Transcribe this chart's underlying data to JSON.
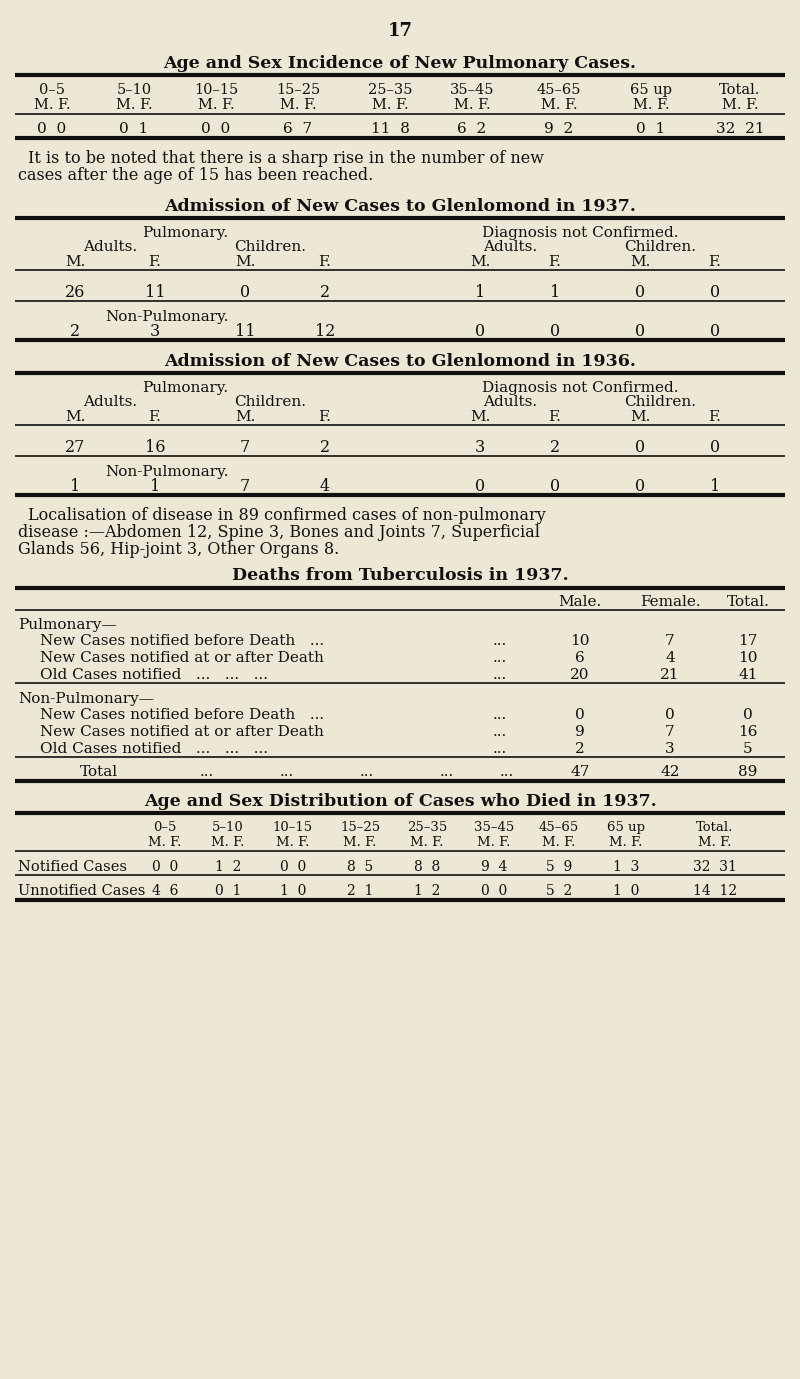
{
  "bg_color": "#ede8d5",
  "text_color": "#1a1a1a",
  "page_number": "17",
  "section1_title": "Age and Sex Incidence of New Pulmonary Cases.",
  "section1_age_headers": [
    "0–5",
    "5–10",
    "10–15",
    "15–25",
    "25–35",
    "35–45",
    "45–65",
    "65 up",
    "Total."
  ],
  "section1_mf_headers": [
    "M. F.",
    "M. F.",
    "M. F.",
    "M. F.",
    "M. F.",
    "M. F.",
    "M. F.",
    "M. F.",
    "M. F."
  ],
  "section1_data_m": [
    0,
    0,
    0,
    6,
    11,
    6,
    9,
    0,
    32
  ],
  "section1_data_f": [
    0,
    1,
    0,
    7,
    8,
    2,
    2,
    1,
    21
  ],
  "section1_note_line1": "It is to be noted that there is a sharp rise in the number of new",
  "section1_note_line2": "cases after the age of 15 has been reached.",
  "section2_title": "Admission of New Cases to Glenlomond in 1937.",
  "section2_pulm_m_adult": 26,
  "section2_pulm_f_adult": 11,
  "section2_pulm_m_child": 0,
  "section2_pulm_f_child": 2,
  "section2_diag_m_adult": 1,
  "section2_diag_f_adult": 1,
  "section2_diag_m_child": 0,
  "section2_diag_f_child": 0,
  "section2_nonpulm_m_adult": 2,
  "section2_nonpulm_f_adult": 3,
  "section2_nonpulm_m_child": 11,
  "section2_nonpulm_f_child": 12,
  "section2_nonpulm_diag_m_adult": 0,
  "section2_nonpulm_diag_f_adult": 0,
  "section2_nonpulm_diag_m_child": 0,
  "section2_nonpulm_diag_f_child": 0,
  "section3_title": "Admission of New Cases to Glenlomond in 1936.",
  "section3_pulm_m_adult": 27,
  "section3_pulm_f_adult": 16,
  "section3_pulm_m_child": 7,
  "section3_pulm_f_child": 2,
  "section3_diag_m_adult": 3,
  "section3_diag_f_adult": 2,
  "section3_diag_m_child": 0,
  "section3_diag_f_child": 0,
  "section3_nonpulm_m_adult": 1,
  "section3_nonpulm_f_adult": 1,
  "section3_nonpulm_m_child": 7,
  "section3_nonpulm_f_child": 4,
  "section3_nonpulm_diag_m_adult": 0,
  "section3_nonpulm_diag_f_adult": 0,
  "section3_nonpulm_diag_m_child": 0,
  "section3_nonpulm_diag_f_child": 1,
  "localisation_line1": "Localisation of disease in 89 confirmed cases of non-pulmonary",
  "localisation_line2": "disease :—Abdomen 12, Spine 3, Bones and Joints 7, Superficial",
  "localisation_line3": "Glands 56, Hip-joint 3, Other Organs 8.",
  "section4_title": "Deaths from Tuberculosis in 1937.",
  "section4_col1": "Male.",
  "section4_col2": "Female.",
  "section4_col3": "Total.",
  "s4_pulm_label": "Pulmonary—",
  "s4_row1_label": "New Cases notified before Death   ...",
  "s4_row1_dots": "...",
  "s4_row1": [
    10,
    7,
    17
  ],
  "s4_row2_label": "New Cases notified at or after Death",
  "s4_row2_dots": "...",
  "s4_row2": [
    6,
    4,
    10
  ],
  "s4_row3_label": "Old Cases notified   ...   ...   ...",
  "s4_row3_dots": "...",
  "s4_row3": [
    20,
    21,
    41
  ],
  "s4_nonpulm_label": "Non-Pulmonary—",
  "s4_row4_label": "New Cases notified before Death   ...",
  "s4_row4_dots": "...",
  "s4_row4": [
    0,
    0,
    0
  ],
  "s4_row5_label": "New Cases notified at or after Death",
  "s4_row5_dots": "...",
  "s4_row5": [
    9,
    7,
    16
  ],
  "s4_row6_label": "Old Cases notified   ...   ...   ...",
  "s4_row6_dots": "...",
  "s4_row6": [
    2,
    3,
    5
  ],
  "s4_total_label": "Total",
  "s4_total_dots": "...   ...   ...   ...   ...",
  "s4_total": [
    47,
    42,
    89
  ],
  "section5_title": "Age and Sex Distribution of Cases who Died in 1937.",
  "section5_age_headers": [
    "0–5",
    "5–10",
    "10–15",
    "15–25",
    "25–35",
    "35–45",
    "45–65",
    "65 up",
    "Total."
  ],
  "section5_mf_headers": [
    "M. F.",
    "M. F.",
    "M. F.",
    "M. F.",
    "M. F.",
    "M. F.",
    "M. F.",
    "M. F.",
    "M. F."
  ],
  "section5_notified_label": "Notified Cases",
  "section5_notified_m": [
    0,
    1,
    0,
    8,
    8,
    9,
    5,
    1,
    32
  ],
  "section5_notified_f": [
    0,
    2,
    0,
    5,
    8,
    4,
    9,
    3,
    31
  ],
  "section5_unnotified_label": "Unnotified Cases",
  "section5_unnotified_m": [
    4,
    0,
    1,
    2,
    1,
    0,
    5,
    1,
    14
  ],
  "section5_unnotified_f": [
    6,
    1,
    0,
    1,
    2,
    0,
    2,
    0,
    12
  ]
}
